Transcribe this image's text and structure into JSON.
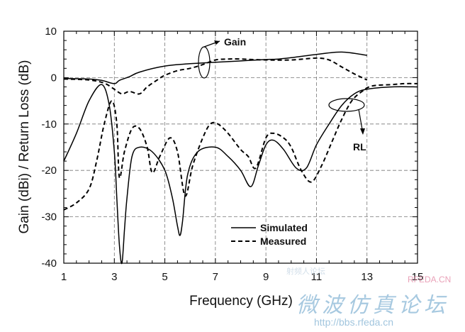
{
  "chart_data": {
    "type": "line",
    "xlabel": "Frequency (GHz)",
    "ylabel": "Gain (dBi) / Return Loss (dB)",
    "xlim": [
      1,
      15
    ],
    "ylim": [
      -40,
      10
    ],
    "x_ticks": [
      1,
      3,
      5,
      7,
      9,
      11,
      13,
      15
    ],
    "y_ticks": [
      10,
      0,
      -10,
      -20,
      -30,
      -40
    ],
    "grid": true,
    "legend_position": "bottom-center",
    "series": [
      {
        "name": "Simulated",
        "quantity": "Gain",
        "style": "solid",
        "x": [
          1,
          2,
          2.5,
          3,
          3.2,
          3.6,
          4,
          5,
          6,
          7,
          8,
          9,
          9.5,
          10,
          11,
          12,
          13
        ],
        "y": [
          -0.2,
          -0.3,
          -0.6,
          -1.3,
          -0.6,
          0.2,
          1.2,
          2.5,
          3.0,
          3.3,
          3.6,
          3.9,
          4.0,
          4.3,
          5.0,
          5.5,
          4.8
        ]
      },
      {
        "name": "Measured",
        "quantity": "Gain",
        "style": "dashed",
        "x": [
          1,
          2,
          2.6,
          3,
          3.3,
          3.6,
          4,
          4.3,
          4.7,
          5,
          5.5,
          6,
          6.5,
          7,
          7.5,
          8,
          9,
          10,
          11,
          11.5,
          12,
          12.5,
          13
        ],
        "y": [
          -0.3,
          -0.5,
          -1.2,
          -2.5,
          -3.5,
          -3.0,
          -3.5,
          -2.0,
          -0.5,
          0.5,
          1.5,
          2.0,
          2.8,
          3.8,
          4.0,
          4.0,
          3.8,
          3.8,
          4.2,
          3.8,
          2.3,
          0.8,
          -0.5
        ]
      },
      {
        "name": "Simulated",
        "quantity": "RL",
        "style": "solid",
        "x": [
          1,
          1.5,
          2,
          2.5,
          2.8,
          3.0,
          3.1,
          3.2,
          3.3,
          3.4,
          3.5,
          3.7,
          4,
          4.5,
          5,
          5.3,
          5.5,
          5.6,
          5.7,
          5.9,
          6.3,
          7,
          7.5,
          8,
          8.4,
          8.7,
          9,
          9.3,
          9.7,
          10.2,
          10.6,
          11,
          11.5,
          12,
          12.5,
          13,
          14,
          15
        ],
        "y": [
          -18,
          -12,
          -5,
          -1.5,
          -6,
          -16,
          -26,
          -36,
          -40,
          -33,
          -26,
          -17,
          -15,
          -16,
          -20,
          -26,
          -32,
          -34,
          -31,
          -21,
          -16,
          -15,
          -17,
          -20,
          -23.5,
          -19,
          -14.5,
          -13.5,
          -15.5,
          -19.5,
          -19.5,
          -14.5,
          -10,
          -6,
          -3.5,
          -2.5,
          -2,
          -2
        ]
      },
      {
        "name": "Measured",
        "quantity": "RL",
        "style": "dashed",
        "x": [
          1,
          1.5,
          2,
          2.3,
          2.6,
          2.9,
          3.1,
          3.2,
          3.4,
          3.7,
          4,
          4.3,
          4.5,
          4.8,
          5.2,
          5.5,
          5.8,
          6.1,
          6.5,
          6.8,
          7.1,
          7.5,
          8,
          8.3,
          8.6,
          9,
          9.3,
          9.7,
          10,
          10.4,
          10.8,
          11.2,
          11.6,
          12,
          12.4,
          12.8,
          13.2,
          14,
          14.5,
          15
        ],
        "y": [
          -28.5,
          -27,
          -24,
          -18,
          -10,
          -5,
          -10,
          -21.5,
          -16,
          -11,
          -11,
          -15,
          -20.5,
          -17,
          -13,
          -16,
          -25.5,
          -19,
          -13,
          -10,
          -10,
          -12,
          -15.5,
          -17,
          -19.5,
          -13,
          -12,
          -13,
          -15,
          -20,
          -22.5,
          -19,
          -14,
          -9,
          -5,
          -3,
          -1.8,
          -1.5,
          -1.3,
          -1.3
        ]
      }
    ],
    "annotations": [
      {
        "text": "Gain",
        "points_to": "gain curves at about 6.5 GHz"
      },
      {
        "text": "RL",
        "points_to": "return loss curves at about 12 GHz"
      }
    ]
  },
  "watermark": {
    "chinese": "微波仿真论坛",
    "url": "http://bbs.rfeda.cn",
    "logo": "RFEDA.CN",
    "small": "射频人论坛"
  }
}
